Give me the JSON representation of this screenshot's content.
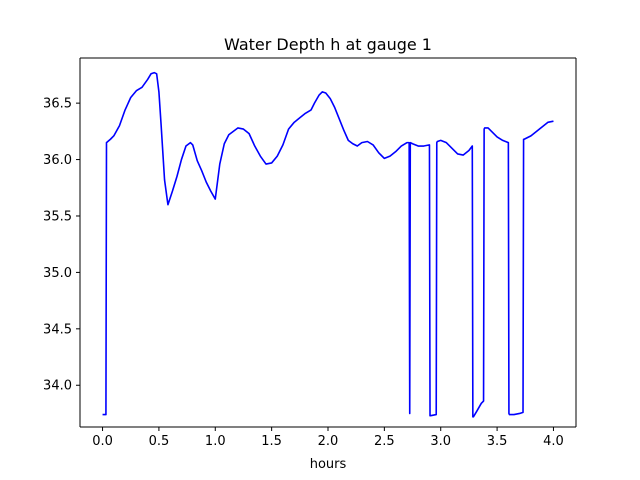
{
  "chart_data": {
    "type": "line",
    "title": "Water Depth h at gauge 1",
    "xlabel": "hours",
    "ylabel": "",
    "xlim": [
      -0.2,
      4.2
    ],
    "ylim": [
      33.63,
      36.9
    ],
    "xticks": [
      0.0,
      0.5,
      1.0,
      1.5,
      2.0,
      2.5,
      3.0,
      3.5,
      4.0
    ],
    "xtick_labels": [
      "0.0",
      "0.5",
      "1.0",
      "1.5",
      "2.0",
      "2.5",
      "3.0",
      "3.5",
      "4.0"
    ],
    "yticks": [
      34.0,
      34.5,
      35.0,
      35.5,
      36.0,
      36.5
    ],
    "ytick_labels": [
      "34.0",
      "34.5",
      "35.0",
      "35.5",
      "36.0",
      "36.5"
    ],
    "grid": false,
    "legend": false,
    "series": [
      {
        "color": "#0000ff",
        "x": [
          0.0,
          0.03,
          0.035,
          0.07,
          0.1,
          0.15,
          0.2,
          0.25,
          0.3,
          0.35,
          0.4,
          0.43,
          0.46,
          0.48,
          0.5,
          0.52,
          0.55,
          0.58,
          0.62,
          0.66,
          0.7,
          0.74,
          0.78,
          0.8,
          0.84,
          0.88,
          0.92,
          0.96,
          1.0,
          1.04,
          1.08,
          1.12,
          1.16,
          1.2,
          1.25,
          1.3,
          1.35,
          1.4,
          1.45,
          1.5,
          1.55,
          1.6,
          1.65,
          1.7,
          1.75,
          1.8,
          1.85,
          1.88,
          1.92,
          1.95,
          1.98,
          2.02,
          2.06,
          2.1,
          2.14,
          2.18,
          2.22,
          2.26,
          2.3,
          2.35,
          2.4,
          2.45,
          2.5,
          2.55,
          2.6,
          2.65,
          2.7,
          2.72,
          2.725,
          2.73,
          2.75,
          2.8,
          2.85,
          2.9,
          2.905,
          2.91,
          2.96,
          2.965,
          2.97,
          3.0,
          3.05,
          3.1,
          3.15,
          3.2,
          3.25,
          3.28,
          3.285,
          3.29,
          3.32,
          3.36,
          3.38,
          3.385,
          3.39,
          3.42,
          3.46,
          3.5,
          3.55,
          3.6,
          3.605,
          3.61,
          3.65,
          3.7,
          3.73,
          3.735,
          3.74,
          3.8,
          3.85,
          3.9,
          3.95,
          4.0
        ],
        "y": [
          33.74,
          33.74,
          36.15,
          36.18,
          36.21,
          36.3,
          36.44,
          36.55,
          36.61,
          36.64,
          36.71,
          36.76,
          36.77,
          36.76,
          36.6,
          36.3,
          35.82,
          35.6,
          35.72,
          35.85,
          36.0,
          36.12,
          36.15,
          36.13,
          35.99,
          35.9,
          35.8,
          35.72,
          35.65,
          35.96,
          36.14,
          36.22,
          36.25,
          36.28,
          36.27,
          36.23,
          36.12,
          36.03,
          35.96,
          35.97,
          36.03,
          36.13,
          36.27,
          36.33,
          36.37,
          36.41,
          36.44,
          36.5,
          36.57,
          36.6,
          36.59,
          36.54,
          36.46,
          36.36,
          36.26,
          36.17,
          36.14,
          36.12,
          36.15,
          36.16,
          36.13,
          36.06,
          36.01,
          36.03,
          36.07,
          36.12,
          36.15,
          36.15,
          33.75,
          36.15,
          36.14,
          36.12,
          36.12,
          36.13,
          33.73,
          33.73,
          33.74,
          36.15,
          36.16,
          36.17,
          36.15,
          36.1,
          36.05,
          36.04,
          36.08,
          36.12,
          33.72,
          33.72,
          33.77,
          33.84,
          33.86,
          36.27,
          36.28,
          36.28,
          36.24,
          36.2,
          36.17,
          36.15,
          33.75,
          33.74,
          33.74,
          33.75,
          33.76,
          36.18,
          36.18,
          36.21,
          36.25,
          36.29,
          36.33,
          36.34
        ]
      }
    ]
  }
}
